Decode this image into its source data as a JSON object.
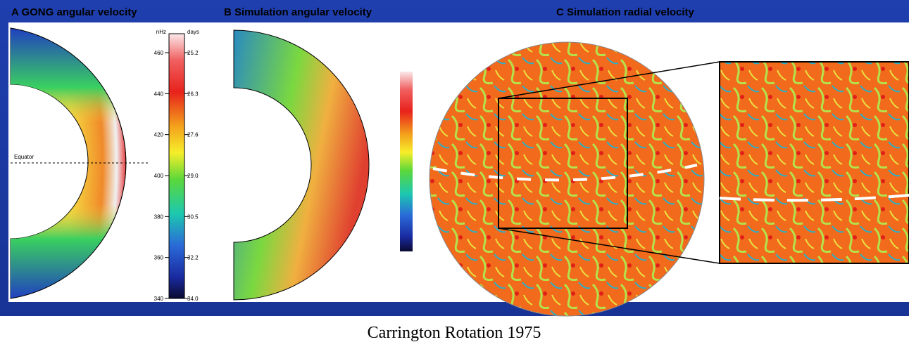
{
  "panel_a": {
    "title": "A GONG angular velocity",
    "equator_label": "Equator",
    "colorbar": {
      "left_unit": "nHz",
      "right_unit": "days",
      "left_labels": [
        "460",
        "440",
        "420",
        "400",
        "380",
        "360",
        "340"
      ],
      "right_labels": [
        "25.2",
        "26.3",
        "27.6",
        "29.0",
        "30.5",
        "32.2",
        "34.0"
      ]
    }
  },
  "panel_b": {
    "title": "B Simulation angular velocity"
  },
  "panel_c": {
    "title": "C Simulation radial velocity"
  },
  "footer": {
    "caption": "Carrington Rotation 1975"
  }
}
